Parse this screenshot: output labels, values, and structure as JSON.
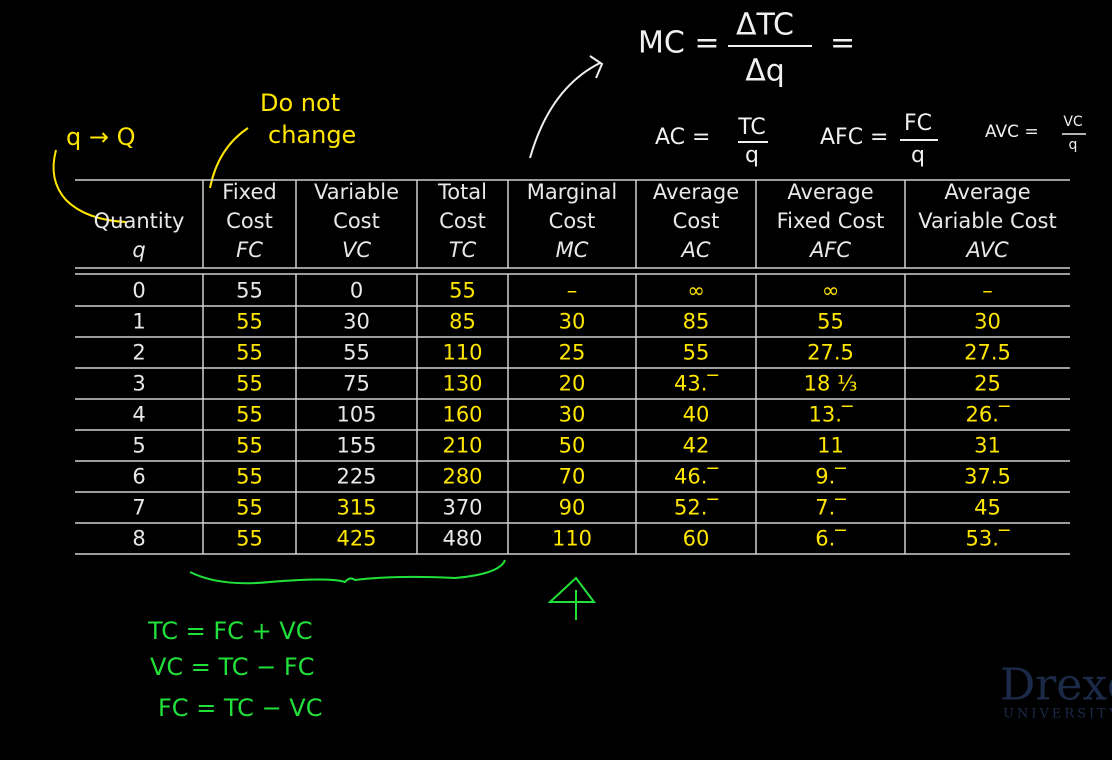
{
  "table": {
    "headers": [
      {
        "lines": [
          "Quantity"
        ],
        "symbol": "q"
      },
      {
        "lines": [
          "Fixed",
          "Cost"
        ],
        "symbol": "FC"
      },
      {
        "lines": [
          "Variable",
          "Cost"
        ],
        "symbol": "VC"
      },
      {
        "lines": [
          "Total",
          "Cost"
        ],
        "symbol": "TC"
      },
      {
        "lines": [
          "Marginal",
          "Cost"
        ],
        "symbol": "MC"
      },
      {
        "lines": [
          "Average",
          "Cost"
        ],
        "symbol": "AC"
      },
      {
        "lines": [
          "Average",
          "Fixed Cost"
        ],
        "symbol": "AFC"
      },
      {
        "lines": [
          "Average",
          "Variable Cost"
        ],
        "symbol": "AVC"
      }
    ],
    "rows": [
      [
        "0",
        "55",
        "0",
        "55",
        "–",
        "∞",
        "∞",
        "–"
      ],
      [
        "1",
        "55",
        "30",
        "85",
        "30",
        "85",
        "55",
        "30"
      ],
      [
        "2",
        "55",
        "55",
        "110",
        "25",
        "55",
        "27.5",
        "27.5"
      ],
      [
        "3",
        "55",
        "75",
        "130",
        "20",
        "43.‾",
        "18 ⅓",
        "25"
      ],
      [
        "4",
        "55",
        "105",
        "160",
        "30",
        "40",
        "13.‾",
        "26.‾"
      ],
      [
        "5",
        "55",
        "155",
        "210",
        "50",
        "42",
        "11",
        "31"
      ],
      [
        "6",
        "55",
        "225",
        "280",
        "70",
        "46.‾",
        "9.‾",
        "37.5"
      ],
      [
        "7",
        "55",
        "315",
        "370",
        "90",
        "52.‾",
        "7.‾",
        "45"
      ],
      [
        "8",
        "55",
        "425",
        "480",
        "110",
        "60",
        "6.‾",
        "53.‾"
      ]
    ]
  },
  "notes": {
    "q_note": "q → Q",
    "do_not_change": [
      "Do not",
      "change"
    ],
    "mc_formula": {
      "lhs": "MC =",
      "num": "ΔTC",
      "den": "Δq",
      "tail": "="
    },
    "ac_formula": {
      "lhs": "AC =",
      "num": "TC",
      "den": "q"
    },
    "afc_formula": {
      "lhs": "AFC =",
      "num": "FC",
      "den": "q"
    },
    "avc_formula": {
      "lhs": "AVC =",
      "num": "VC",
      "den": "q"
    },
    "identities": [
      "TC = FC + VC",
      "VC = TC − FC",
      "FC = TC − VC"
    ]
  },
  "logo": {
    "name": "Drexel",
    "sub": "UNIVERSITY"
  }
}
